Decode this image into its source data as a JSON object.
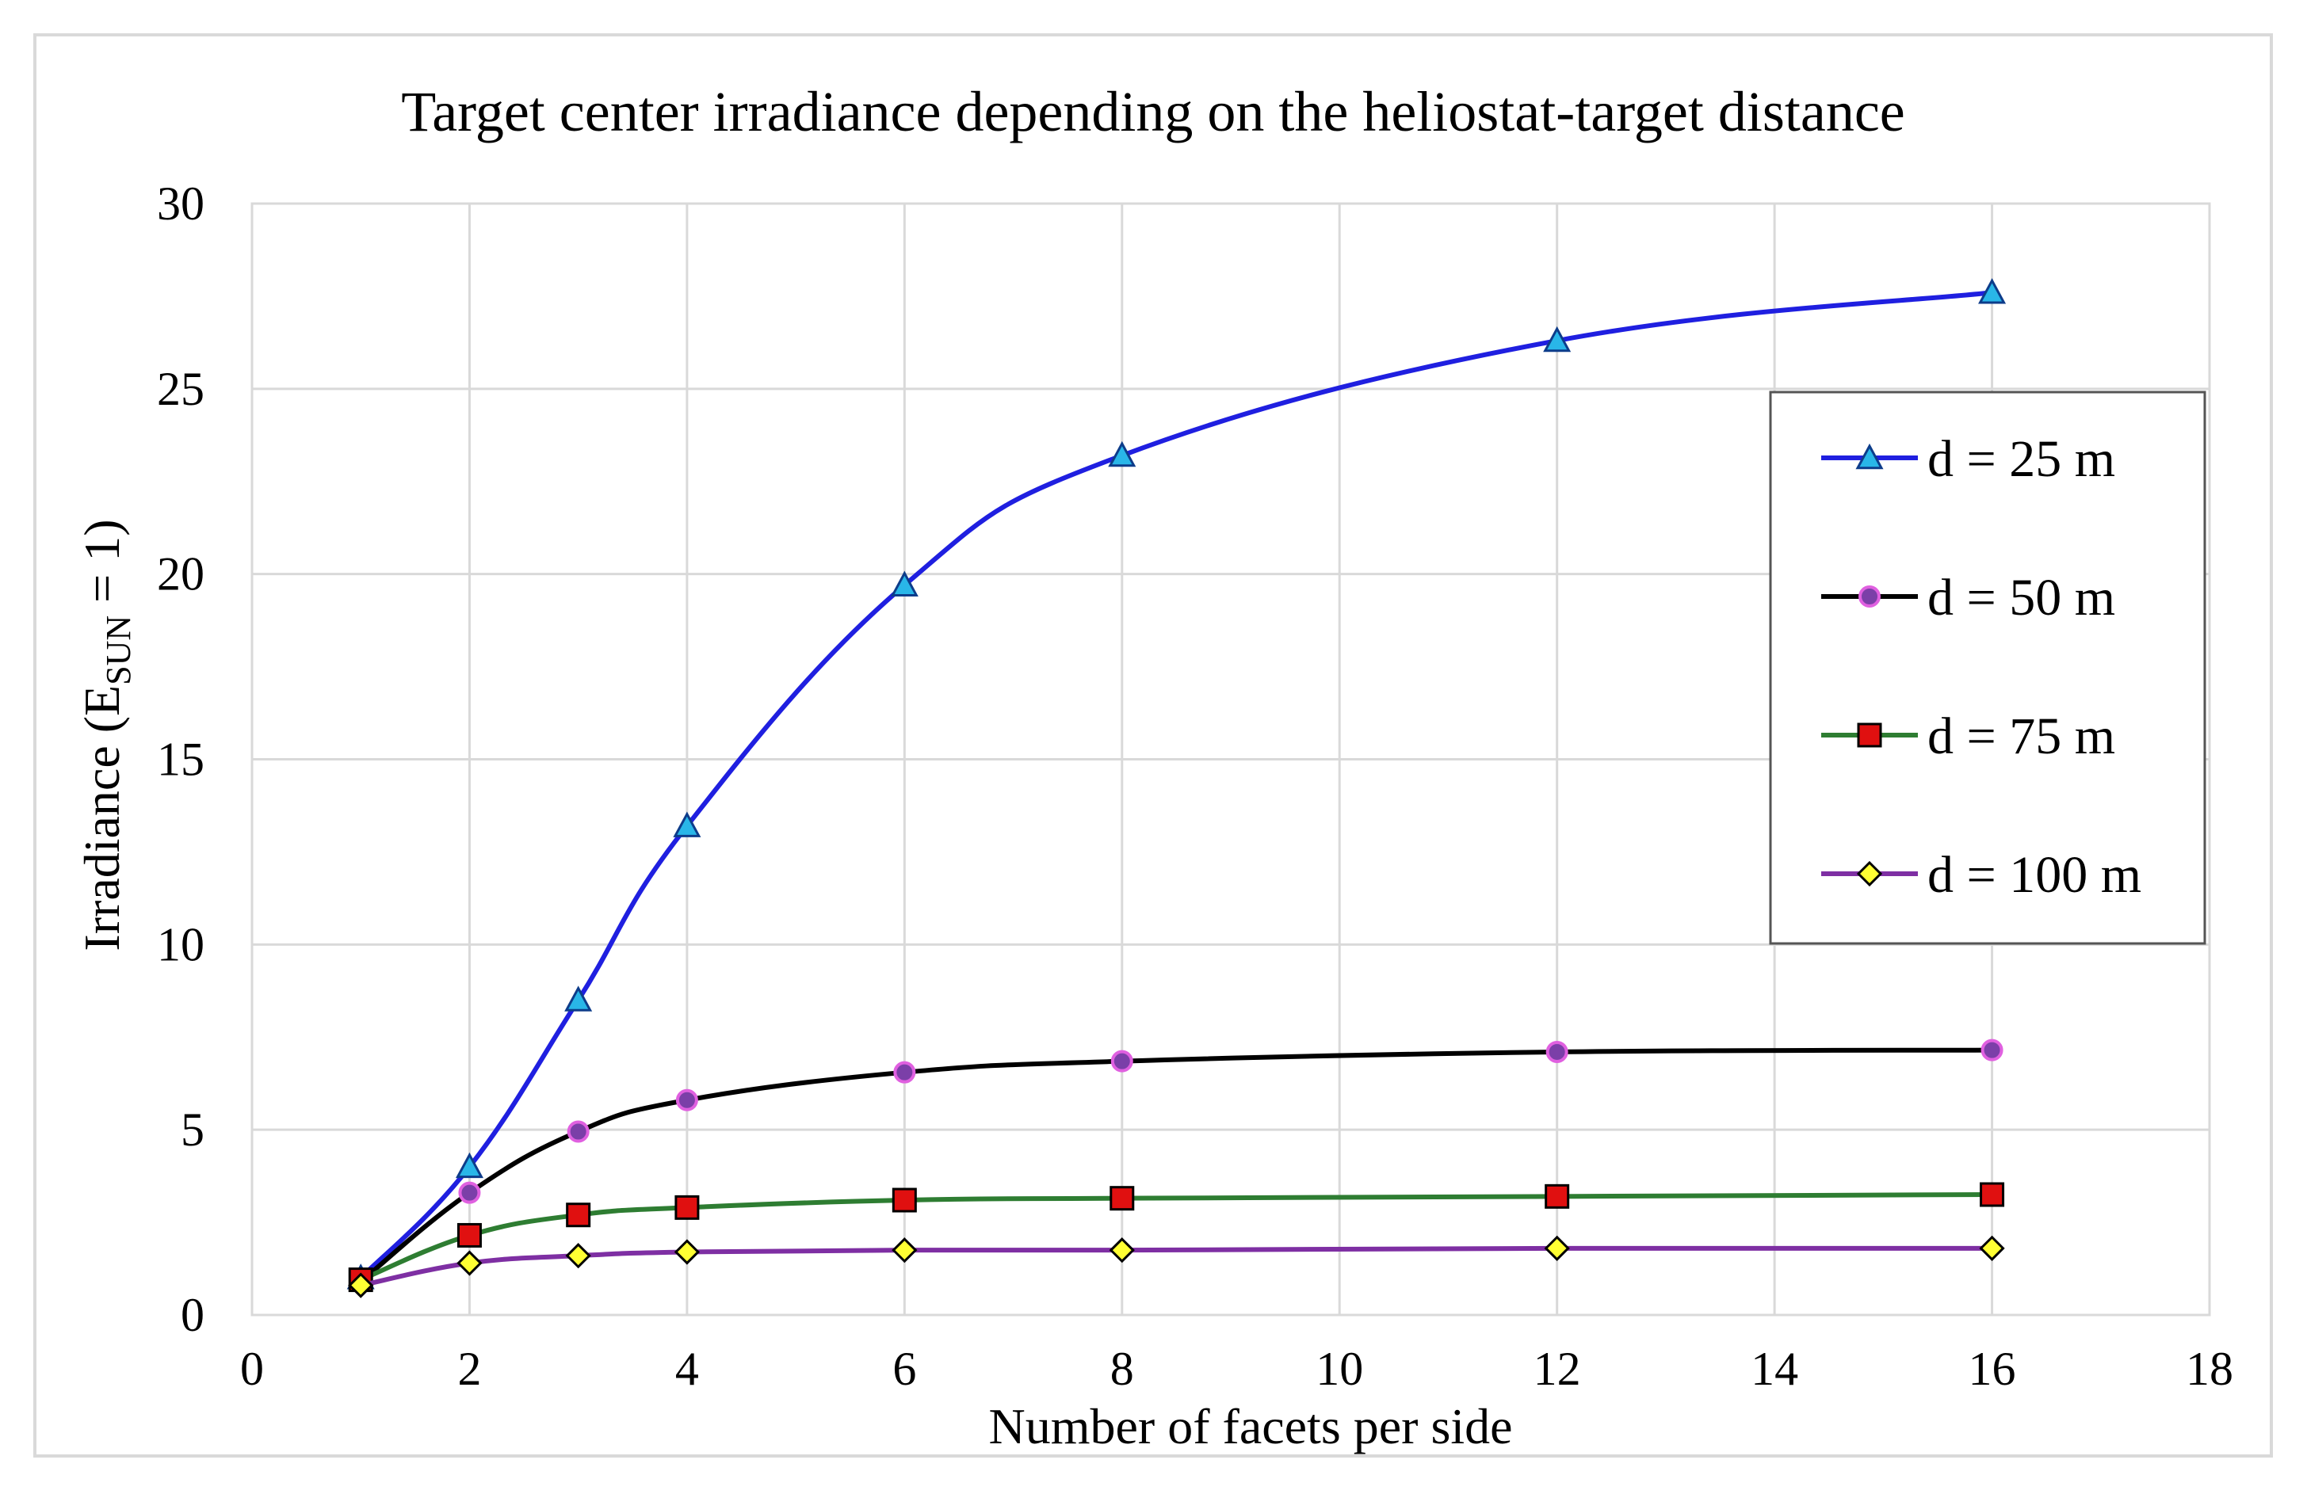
{
  "chart_data": {
    "type": "line",
    "title": "Target center irradiance depending on the heliostat-target distance",
    "xlabel": "Number of facets per side",
    "ylabel": {
      "main": "Irradiance (E",
      "sub": "SUN",
      "tail": " = 1)"
    },
    "xlim": [
      0,
      18
    ],
    "ylim": [
      0,
      30
    ],
    "xticks": [
      0,
      2,
      4,
      6,
      8,
      10,
      12,
      14,
      16,
      18
    ],
    "yticks": [
      0,
      5,
      10,
      15,
      20,
      25,
      30
    ],
    "grid": true,
    "legend_position": "right",
    "x": [
      1,
      2,
      3,
      4,
      6,
      8,
      12,
      16
    ],
    "series": [
      {
        "name": "d = 25 m",
        "line_color": "#1f1fe0",
        "marker": "triangle",
        "marker_fill": "#29b6e8",
        "marker_stroke": "#0d3c8a",
        "values": [
          1.0,
          4.0,
          8.5,
          13.2,
          19.7,
          23.2,
          26.3,
          27.6
        ]
      },
      {
        "name": "d = 50 m",
        "line_color": "#000000",
        "marker": "circle",
        "marker_fill": "#7b3fa8",
        "marker_stroke": "#e060e0",
        "values": [
          0.9,
          3.3,
          4.95,
          5.8,
          6.55,
          6.85,
          7.1,
          7.15
        ]
      },
      {
        "name": "d = 75 m",
        "line_color": "#2e7d32",
        "marker": "square",
        "marker_fill": "#e01010",
        "marker_stroke": "#000000",
        "values": [
          0.95,
          2.15,
          2.7,
          2.9,
          3.1,
          3.15,
          3.2,
          3.25
        ]
      },
      {
        "name": "d = 100 m",
        "line_color": "#7e2fa3",
        "marker": "diamond",
        "marker_fill": "#ffff33",
        "marker_stroke": "#000000",
        "values": [
          0.8,
          1.4,
          1.6,
          1.7,
          1.75,
          1.75,
          1.8,
          1.8
        ]
      }
    ]
  }
}
